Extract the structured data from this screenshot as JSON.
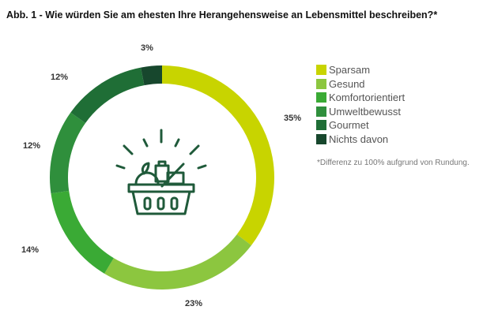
{
  "chart_data": {
    "type": "pie",
    "donut": true,
    "title": "Abb. 1 - Wie würden Sie am ehesten Ihre Herangehensweise an Lebensmittel beschreiben?*",
    "categories": [
      "Sparsam",
      "Gesund",
      "Komfortorientiert",
      "Umweltbewusst",
      "Gourmet",
      "Nichts davon"
    ],
    "values": [
      35,
      23,
      14,
      12,
      12,
      3
    ],
    "labels": [
      "35%",
      "23%",
      "14%",
      "12%",
      "12%",
      "3%"
    ],
    "colors": [
      "#c8d400",
      "#8cc63f",
      "#3aaa35",
      "#2f8f3c",
      "#1f6e36",
      "#17472d"
    ],
    "legend_position": "right",
    "note": "*Differenz zu 100% aufgrund von Rundung.",
    "center_icon": "food-basket-icon"
  }
}
